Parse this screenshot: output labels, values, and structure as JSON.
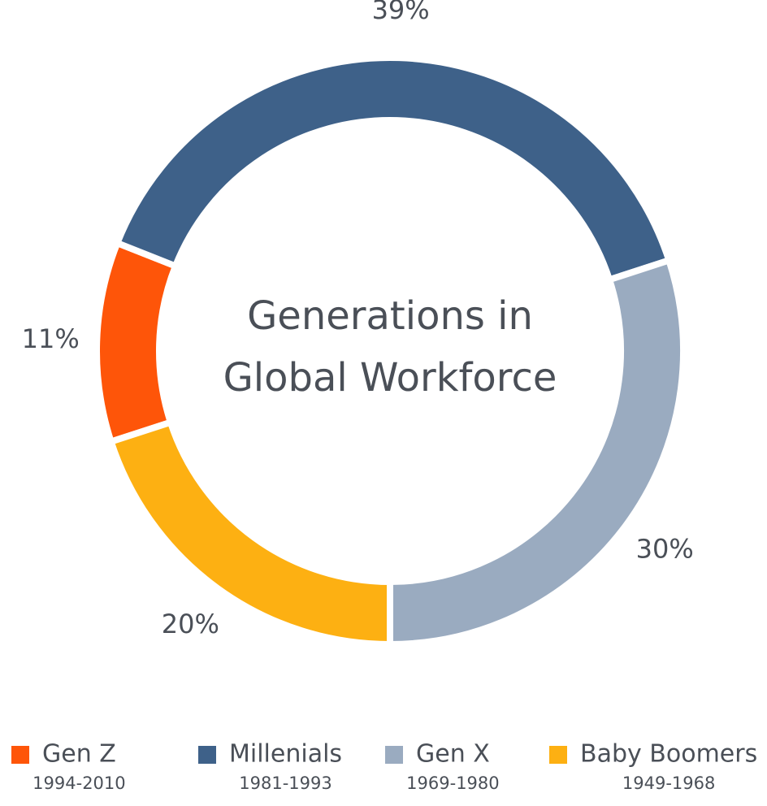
{
  "chart_data": {
    "type": "donut",
    "title": [
      "Generations in",
      "Global Workforce"
    ],
    "categories": [
      "Gen Z",
      "Millenials",
      "Gen X",
      "Baby Boomers"
    ],
    "years": [
      "1994-2010",
      "1981-1993",
      "1969-1980",
      "1949-1968"
    ],
    "values": [
      11,
      39,
      30,
      20
    ],
    "value_labels": [
      "11%",
      "39%",
      "30%",
      "20%"
    ],
    "colors": [
      "#fe5509",
      "#3e6189",
      "#9aabc0",
      "#fdb012"
    ]
  }
}
